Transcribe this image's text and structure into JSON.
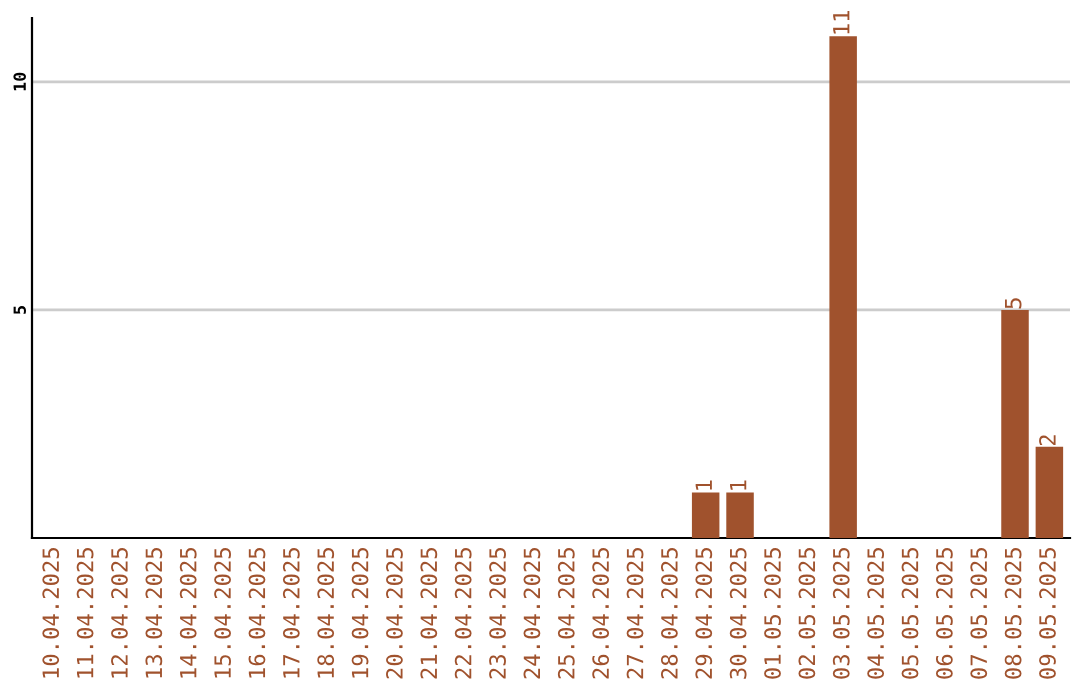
{
  "chart_data": {
    "type": "bar",
    "categories": [
      "10.04.2025",
      "11.04.2025",
      "12.04.2025",
      "13.04.2025",
      "14.04.2025",
      "15.04.2025",
      "16.04.2025",
      "17.04.2025",
      "18.04.2025",
      "19.04.2025",
      "20.04.2025",
      "21.04.2025",
      "22.04.2025",
      "23.04.2025",
      "24.04.2025",
      "25.04.2025",
      "26.04.2025",
      "27.04.2025",
      "28.04.2025",
      "29.04.2025",
      "30.04.2025",
      "01.05.2025",
      "02.05.2025",
      "03.05.2025",
      "04.05.2025",
      "05.05.2025",
      "06.05.2025",
      "07.05.2025",
      "08.05.2025",
      "09.05.2025"
    ],
    "values": [
      0,
      0,
      0,
      0,
      0,
      0,
      0,
      0,
      0,
      0,
      0,
      0,
      0,
      0,
      0,
      0,
      0,
      0,
      0,
      1,
      1,
      0,
      0,
      11,
      0,
      0,
      0,
      0,
      5,
      2
    ],
    "value_labels": [
      null,
      null,
      null,
      null,
      null,
      null,
      null,
      null,
      null,
      null,
      null,
      null,
      null,
      null,
      null,
      null,
      null,
      null,
      null,
      "1",
      "1",
      null,
      null,
      "11",
      null,
      null,
      null,
      null,
      "5",
      "2"
    ],
    "color": "#a0522d",
    "ylim": [
      0,
      11.4
    ],
    "yticks": [
      5,
      10
    ],
    "grid": "y"
  }
}
